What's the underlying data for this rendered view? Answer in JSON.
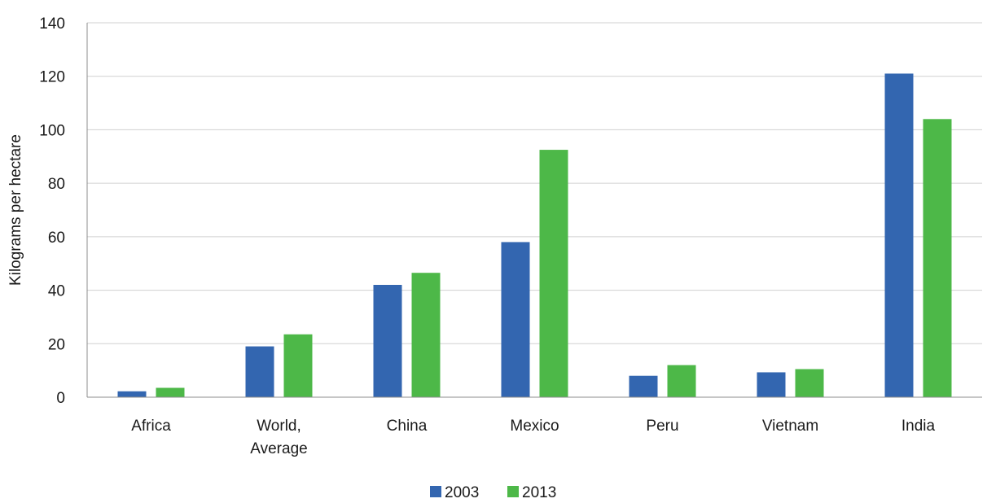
{
  "chart_data": {
    "type": "bar",
    "title": "",
    "xlabel": "",
    "ylabel": "Kilograms per hectare",
    "ylim": [
      0,
      140
    ],
    "yticks": [
      0,
      20,
      40,
      60,
      80,
      100,
      120,
      140
    ],
    "grid": true,
    "legend_position": "bottom",
    "categories": [
      [
        "Africa"
      ],
      [
        "World,",
        "Average"
      ],
      [
        "China"
      ],
      [
        "Mexico"
      ],
      [
        "Peru"
      ],
      [
        "Vietnam"
      ],
      [
        "India"
      ]
    ],
    "series": [
      {
        "name": "2003",
        "color": "#3366b0",
        "values": [
          2.2,
          19.0,
          42.0,
          58.0,
          8.0,
          9.3,
          121.0
        ]
      },
      {
        "name": "2013",
        "color": "#4db848",
        "values": [
          3.5,
          23.5,
          46.5,
          92.5,
          12.0,
          10.5,
          104.0
        ]
      }
    ]
  }
}
